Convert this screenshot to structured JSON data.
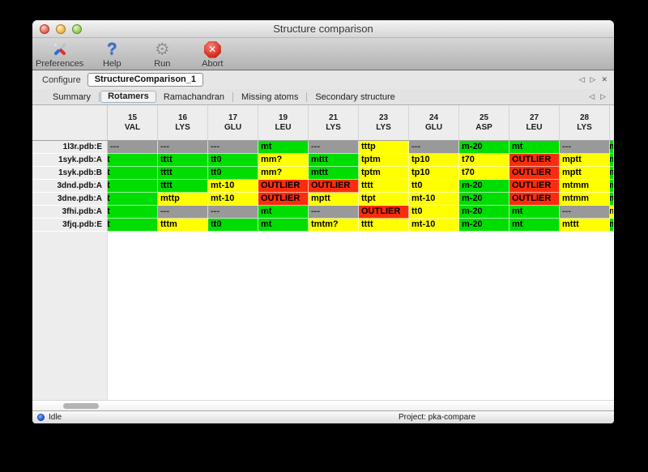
{
  "window": {
    "title": "Structure comparison"
  },
  "traffic_lights": {
    "close": "red",
    "minimize": "yellow",
    "zoom": "green"
  },
  "toolbar": {
    "items": [
      {
        "label": "Preferences",
        "icon": "tools-icon"
      },
      {
        "label": "Help",
        "icon": "question-icon"
      },
      {
        "label": "Run",
        "icon": "gear-icon"
      },
      {
        "label": "Abort",
        "icon": "stop-icon"
      }
    ]
  },
  "configure": {
    "label": "Configure",
    "value": "StructureComparison_1"
  },
  "nav": {
    "prev": "◁",
    "next": "▷",
    "close": "✕"
  },
  "tabs": {
    "items": [
      "Summary",
      "Rotamers",
      "Ramachandran",
      "Missing atoms",
      "Secondary structure"
    ],
    "active": "Rotamers"
  },
  "colors": {
    "green": "#00dd00",
    "yellow": "#ffff00",
    "red": "#f92d0d",
    "gray": "#999999"
  },
  "table": {
    "columns": [
      {
        "num": "15",
        "res": "VAL"
      },
      {
        "num": "16",
        "res": "LYS"
      },
      {
        "num": "17",
        "res": "GLU"
      },
      {
        "num": "19",
        "res": "LEU"
      },
      {
        "num": "21",
        "res": "LYS"
      },
      {
        "num": "23",
        "res": "LYS"
      },
      {
        "num": "24",
        "res": "GLU"
      },
      {
        "num": "25",
        "res": "ASP"
      },
      {
        "num": "27",
        "res": "LEU"
      },
      {
        "num": "28",
        "res": "LYS"
      }
    ],
    "rows": [
      {
        "label": "1l3r.pdb:E",
        "cells": [
          {
            "text": "---",
            "color": "gray"
          },
          {
            "text": "---",
            "color": "gray"
          },
          {
            "text": "---",
            "color": "gray"
          },
          {
            "text": "mt",
            "color": "green"
          },
          {
            "text": "---",
            "color": "gray"
          },
          {
            "text": "tttp",
            "color": "yellow"
          },
          {
            "text": "---",
            "color": "gray"
          },
          {
            "text": "m-20",
            "color": "green"
          },
          {
            "text": "mt",
            "color": "green"
          },
          {
            "text": "---",
            "color": "gray"
          }
        ],
        "overflow": {
          "text": "m",
          "color": "green"
        }
      },
      {
        "label": "1syk.pdb:A",
        "cells": [
          {
            "text": "t",
            "color": "green",
            "clip": true
          },
          {
            "text": "tttt",
            "color": "green"
          },
          {
            "text": "tt0",
            "color": "green"
          },
          {
            "text": "mm?",
            "color": "yellow"
          },
          {
            "text": "mttt",
            "color": "green"
          },
          {
            "text": "tptm",
            "color": "yellow"
          },
          {
            "text": "tp10",
            "color": "yellow"
          },
          {
            "text": "t70",
            "color": "yellow"
          },
          {
            "text": "OUTLIER",
            "color": "red"
          },
          {
            "text": "mptt",
            "color": "yellow"
          }
        ],
        "overflow": {
          "text": "m",
          "color": "green"
        }
      },
      {
        "label": "1syk.pdb:B",
        "cells": [
          {
            "text": "t",
            "color": "green",
            "clip": true
          },
          {
            "text": "tttt",
            "color": "green"
          },
          {
            "text": "tt0",
            "color": "green"
          },
          {
            "text": "mm?",
            "color": "yellow"
          },
          {
            "text": "mttt",
            "color": "green"
          },
          {
            "text": "tptm",
            "color": "yellow"
          },
          {
            "text": "tp10",
            "color": "yellow"
          },
          {
            "text": "t70",
            "color": "yellow"
          },
          {
            "text": "OUTLIER",
            "color": "red"
          },
          {
            "text": "mptt",
            "color": "yellow"
          }
        ],
        "overflow": {
          "text": "m",
          "color": "green"
        }
      },
      {
        "label": "3dnd.pdb:A",
        "cells": [
          {
            "text": "t",
            "color": "green",
            "clip": true
          },
          {
            "text": "tttt",
            "color": "green"
          },
          {
            "text": "mt-10",
            "color": "yellow"
          },
          {
            "text": "OUTLIER",
            "color": "red"
          },
          {
            "text": "OUTLIER",
            "color": "red"
          },
          {
            "text": "tttt",
            "color": "yellow"
          },
          {
            "text": "tt0",
            "color": "yellow"
          },
          {
            "text": "m-20",
            "color": "green"
          },
          {
            "text": "OUTLIER",
            "color": "red"
          },
          {
            "text": "mtmm",
            "color": "yellow"
          }
        ],
        "overflow": {
          "text": "m",
          "color": "green"
        }
      },
      {
        "label": "3dne.pdb:A",
        "cells": [
          {
            "text": "t",
            "color": "green",
            "clip": true
          },
          {
            "text": "mttp",
            "color": "yellow"
          },
          {
            "text": "mt-10",
            "color": "yellow"
          },
          {
            "text": "OUTLIER",
            "color": "red"
          },
          {
            "text": "mptt",
            "color": "yellow"
          },
          {
            "text": "ttpt",
            "color": "yellow"
          },
          {
            "text": "mt-10",
            "color": "yellow"
          },
          {
            "text": "m-20",
            "color": "green"
          },
          {
            "text": "OUTLIER",
            "color": "red"
          },
          {
            "text": "mtmm",
            "color": "yellow"
          }
        ],
        "overflow": {
          "text": "m",
          "color": "green"
        }
      },
      {
        "label": "3fhi.pdb:A",
        "cells": [
          {
            "text": "t",
            "color": "green",
            "clip": true
          },
          {
            "text": "---",
            "color": "gray"
          },
          {
            "text": "---",
            "color": "gray"
          },
          {
            "text": "mt",
            "color": "green"
          },
          {
            "text": "---",
            "color": "gray"
          },
          {
            "text": "OUTLIER",
            "color": "red"
          },
          {
            "text": "tt0",
            "color": "yellow"
          },
          {
            "text": "m-20",
            "color": "green"
          },
          {
            "text": "mt",
            "color": "green"
          },
          {
            "text": "---",
            "color": "gray"
          }
        ],
        "overflow": {
          "text": "m",
          "color": "yellow"
        }
      },
      {
        "label": "3fjq.pdb:E",
        "cells": [
          {
            "text": "t",
            "color": "green",
            "clip": true
          },
          {
            "text": "tttm",
            "color": "yellow"
          },
          {
            "text": "tt0",
            "color": "green"
          },
          {
            "text": "mt",
            "color": "green"
          },
          {
            "text": "tmtm?",
            "color": "yellow"
          },
          {
            "text": "tttt",
            "color": "yellow"
          },
          {
            "text": "mt-10",
            "color": "yellow"
          },
          {
            "text": "m-20",
            "color": "green"
          },
          {
            "text": "mt",
            "color": "green"
          },
          {
            "text": "mttt",
            "color": "yellow"
          }
        ],
        "overflow": {
          "text": "m",
          "color": "green"
        }
      }
    ]
  },
  "statusbar": {
    "status": "Idle",
    "project": "Project: pka-compare"
  }
}
